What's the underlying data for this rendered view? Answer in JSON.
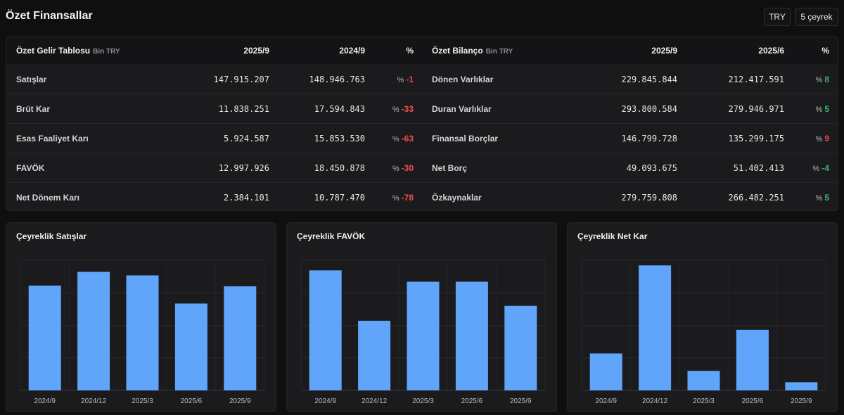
{
  "header": {
    "title": "Özet Finansallar",
    "currency": "TRY",
    "period": "5 çeyrek"
  },
  "income": {
    "title": "Özet Gelir Tablosu",
    "unit": "Bin TRY",
    "col1": "2025/9",
    "col2": "2024/9",
    "col3": "%",
    "rows": [
      {
        "label": "Satışlar",
        "v1": "147.915.207",
        "v2": "148.946.763",
        "pct_sign": "%",
        "pct": "-1",
        "dir": "neg"
      },
      {
        "label": "Brüt Kar",
        "v1": "11.838.251",
        "v2": "17.594.843",
        "pct_sign": "%",
        "pct": "-33",
        "dir": "neg"
      },
      {
        "label": "Esas Faaliyet Karı",
        "v1": "5.924.587",
        "v2": "15.853.530",
        "pct_sign": "%",
        "pct": "-63",
        "dir": "neg"
      },
      {
        "label": "FAVÖK",
        "v1": "12.997.926",
        "v2": "18.450.878",
        "pct_sign": "%",
        "pct": "-30",
        "dir": "neg"
      },
      {
        "label": "Net Dönem Karı",
        "v1": "2.384.101",
        "v2": "10.787.470",
        "pct_sign": "%",
        "pct": "-78",
        "dir": "neg"
      }
    ]
  },
  "balance": {
    "title": "Özet Bilanço",
    "unit": "Bin TRY",
    "col1": "2025/9",
    "col2": "2025/6",
    "col3": "%",
    "rows": [
      {
        "label": "Dönen Varlıklar",
        "v1": "229.845.844",
        "v2": "212.417.591",
        "pct_sign": "%",
        "pct": "8",
        "dir": "pos"
      },
      {
        "label": "Duran Varlıklar",
        "v1": "293.800.584",
        "v2": "279.946.971",
        "pct_sign": "%",
        "pct": "5",
        "dir": "pos"
      },
      {
        "label": "Finansal Borçlar",
        "v1": "146.799.728",
        "v2": "135.299.175",
        "pct_sign": "%",
        "pct": "9",
        "dir": "neg"
      },
      {
        "label": "Net Borç",
        "v1": "49.093.675",
        "v2": "51.402.413",
        "pct_sign": "%",
        "pct": "-4",
        "dir": "pos"
      },
      {
        "label": "Özkaynaklar",
        "v1": "279.759.808",
        "v2": "266.482.251",
        "pct_sign": "%",
        "pct": "5",
        "dir": "pos"
      }
    ]
  },
  "colors": {
    "bar": "#60a5fa",
    "negative": "#ef4d4d",
    "positive": "#3fb56a"
  },
  "chart_data": [
    {
      "type": "bar",
      "title": "Çeyreklik Satışlar",
      "categories": [
        "2024/9",
        "2024/12",
        "2025/3",
        "2025/6",
        "2025/9"
      ],
      "values": [
        148946763,
        168500000,
        163500000,
        123500000,
        147915207
      ],
      "ylim": [
        0,
        185000000
      ],
      "grid": true
    },
    {
      "type": "bar",
      "title": "Çeyreklik FAVÖK",
      "categories": [
        "2024/9",
        "2024/12",
        "2025/3",
        "2025/6",
        "2025/9"
      ],
      "values": [
        18450878,
        10700000,
        16700000,
        16700000,
        12997926
      ],
      "ylim": [
        0,
        20000000
      ],
      "grid": true
    },
    {
      "type": "bar",
      "title": "Çeyreklik Net Kar",
      "categories": [
        "2024/9",
        "2024/12",
        "2025/3",
        "2025/6",
        "2025/9"
      ],
      "values": [
        10787470,
        36500000,
        5700000,
        17700000,
        2384101
      ],
      "ylim": [
        0,
        38000000
      ],
      "grid": true
    }
  ]
}
